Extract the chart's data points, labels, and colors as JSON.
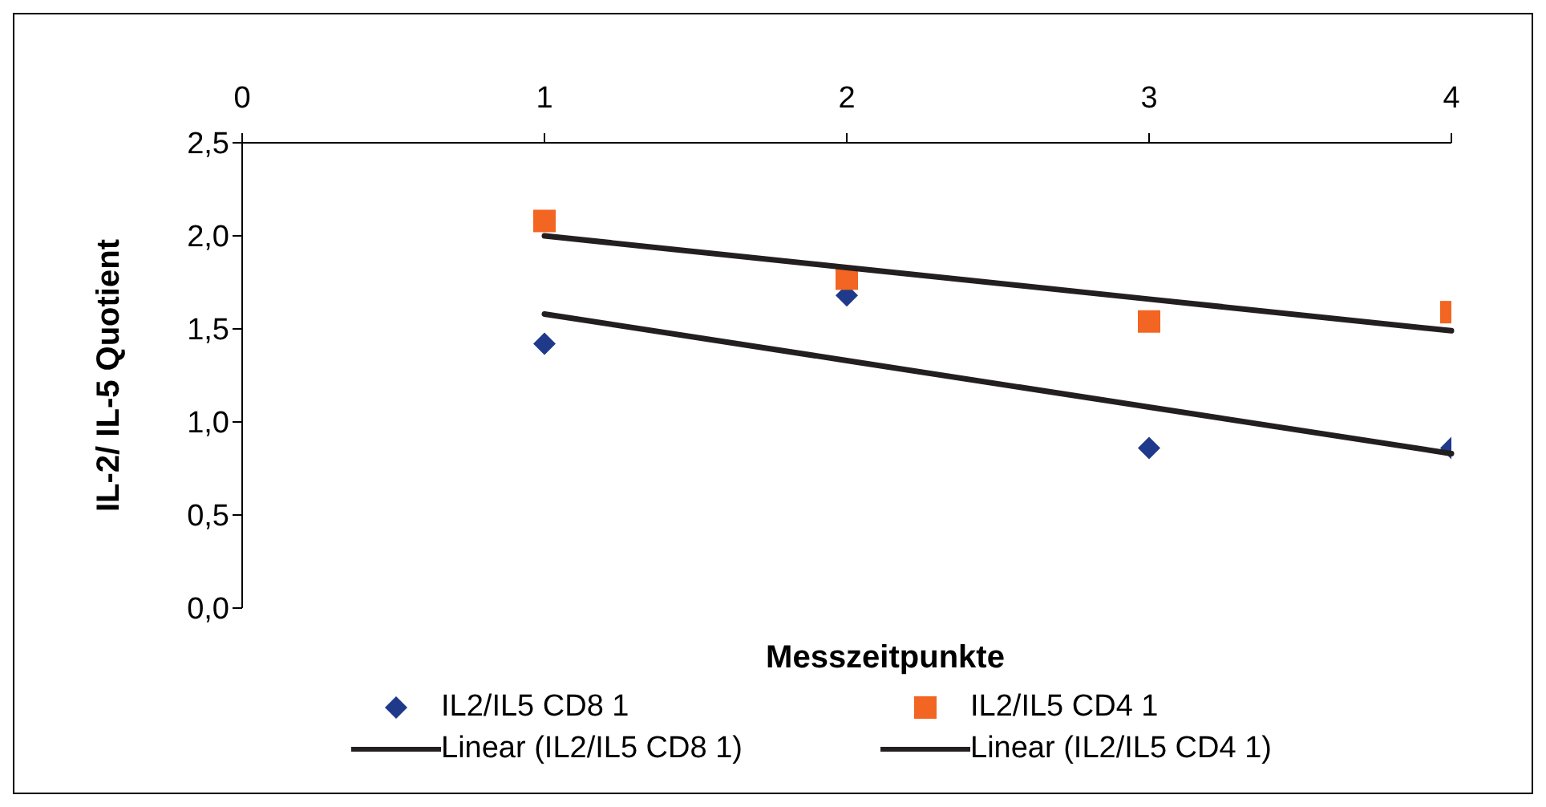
{
  "chart_data": {
    "type": "scatter",
    "xlabel": "Messzeitpunkte",
    "ylabel": "IL-2/ IL-5 Quotient",
    "x": [
      1,
      2,
      3,
      4
    ],
    "series": [
      {
        "name": "IL2/IL5 CD8 1",
        "color": "#1f3a8a",
        "values": [
          1.42,
          1.68,
          0.86,
          0.86
        ],
        "marker": "diamond"
      },
      {
        "name": "IL2/IL5 CD4 1",
        "color": "#f26522",
        "values": [
          2.08,
          1.77,
          1.54,
          1.59
        ],
        "marker": "square"
      },
      {
        "name": "Linear (IL2/IL5 CD8 1)",
        "type": "line",
        "color": "#231f20",
        "values": [
          1.58,
          1.33,
          1.08,
          0.83
        ],
        "marker": "none"
      },
      {
        "name": "Linear (IL2/IL5 CD4 1)",
        "type": "line",
        "color": "#231f20",
        "values": [
          2.0,
          1.83,
          1.66,
          1.49
        ],
        "marker": "none"
      }
    ],
    "xlim": [
      0,
      4
    ],
    "xticks": [
      0,
      1,
      2,
      3,
      4
    ],
    "ylim": [
      0,
      2.5
    ],
    "yticks": [
      {
        "value": 0,
        "label": "0,0"
      },
      {
        "value": 0.5,
        "label": "0,5"
      },
      {
        "value": 1,
        "label": "1,0"
      },
      {
        "value": 1.5,
        "label": "1,5"
      },
      {
        "value": 2,
        "label": "2,0"
      },
      {
        "value": 2.5,
        "label": "2,5"
      }
    ],
    "grid": false,
    "legend": "bottom"
  }
}
